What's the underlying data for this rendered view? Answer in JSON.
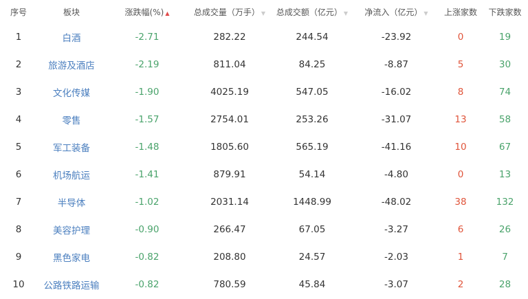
{
  "colors": {
    "link": "#4b7fbf",
    "down": "#4aa36b",
    "up": "#e0543a"
  },
  "headers": {
    "idx": "序号",
    "sector": "板块",
    "change": "涨跌幅(%)",
    "volume": "总成交量（万手）",
    "amount": "总成交额（亿元）",
    "netflow": "净流入（亿元）",
    "up_count": "上涨家数",
    "down_count": "下跌家数"
  },
  "sort": {
    "active": "change",
    "change_icon": "▲",
    "inactive_icon": "▼"
  },
  "rows": [
    {
      "idx": "1",
      "sector": "白酒",
      "change": "-2.71",
      "volume": "282.22",
      "amount": "244.54",
      "netflow": "-23.92",
      "up": "0",
      "down": "19"
    },
    {
      "idx": "2",
      "sector": "旅游及酒店",
      "change": "-2.19",
      "volume": "811.04",
      "amount": "84.25",
      "netflow": "-8.87",
      "up": "5",
      "down": "30"
    },
    {
      "idx": "3",
      "sector": "文化传媒",
      "change": "-1.90",
      "volume": "4025.19",
      "amount": "547.05",
      "netflow": "-16.02",
      "up": "8",
      "down": "74"
    },
    {
      "idx": "4",
      "sector": "零售",
      "change": "-1.57",
      "volume": "2754.01",
      "amount": "253.26",
      "netflow": "-31.07",
      "up": "13",
      "down": "58"
    },
    {
      "idx": "5",
      "sector": "军工装备",
      "change": "-1.48",
      "volume": "1805.60",
      "amount": "565.19",
      "netflow": "-41.16",
      "up": "10",
      "down": "67"
    },
    {
      "idx": "6",
      "sector": "机场航运",
      "change": "-1.41",
      "volume": "879.91",
      "amount": "54.14",
      "netflow": "-4.80",
      "up": "0",
      "down": "13"
    },
    {
      "idx": "7",
      "sector": "半导体",
      "change": "-1.02",
      "volume": "2031.14",
      "amount": "1448.99",
      "netflow": "-48.02",
      "up": "38",
      "down": "132"
    },
    {
      "idx": "8",
      "sector": "美容护理",
      "change": "-0.90",
      "volume": "266.47",
      "amount": "67.05",
      "netflow": "-3.27",
      "up": "6",
      "down": "26"
    },
    {
      "idx": "9",
      "sector": "黑色家电",
      "change": "-0.82",
      "volume": "208.80",
      "amount": "24.57",
      "netflow": "-2.03",
      "up": "1",
      "down": "7"
    },
    {
      "idx": "10",
      "sector": "公路铁路运输",
      "change": "-0.82",
      "volume": "780.59",
      "amount": "45.84",
      "netflow": "-3.07",
      "up": "2",
      "down": "28"
    }
  ]
}
